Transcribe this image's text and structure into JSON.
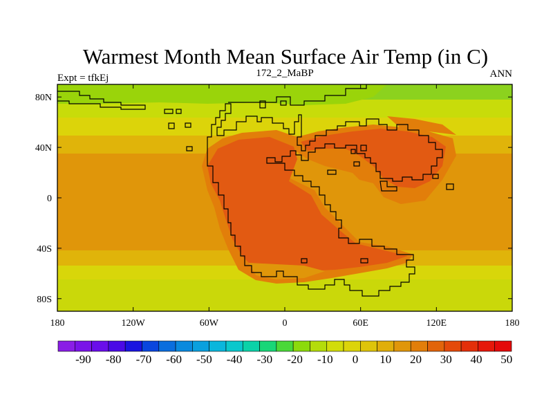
{
  "title": "Warmest Month Mean Surface Air Temp (in C)",
  "left_string": "Expt = tfkEj",
  "center_string": "172_2_MaBP",
  "right_string": "ANN",
  "x_ticks": [
    "180",
    "120W",
    "60W",
    "0",
    "60E",
    "120E",
    "180"
  ],
  "x_tick_values": [
    -180,
    -120,
    -60,
    0,
    60,
    120,
    180
  ],
  "y_ticks": [
    "80N",
    "40N",
    "0",
    "40S",
    "80S"
  ],
  "y_tick_values": [
    80,
    40,
    0,
    -40,
    -80
  ],
  "lon_range": [
    -180,
    180
  ],
  "lat_range": [
    -90,
    90
  ],
  "colorbar": {
    "labels": [
      "-90",
      "-80",
      "-70",
      "-60",
      "-50",
      "-40",
      "-30",
      "-20",
      "-10",
      "0",
      "10",
      "20",
      "30",
      "40",
      "50"
    ],
    "colors": [
      "#8a1ee6",
      "#7a14e8",
      "#6a0eea",
      "#4a0ae6",
      "#1a14e0",
      "#0a46de",
      "#0a6ede",
      "#0a8ade",
      "#0aa0de",
      "#0ab6dc",
      "#0ac8cc",
      "#0ad2a8",
      "#18d678",
      "#4ad838",
      "#8cda0a",
      "#b4dc0a",
      "#d2dc0a",
      "#dcd40a",
      "#dec40a",
      "#e0ae0a",
      "#e0960a",
      "#e27e0a",
      "#e2640a",
      "#e44a0a",
      "#e4300a",
      "#e6180a",
      "#e40a0a"
    ]
  },
  "colors": {
    "polar_green": "#8cd21e",
    "yellow_green": "#c8dc0a",
    "yellow": "#dcd40a",
    "gold": "#e0b40a",
    "orange": "#e0960a",
    "dark_orange": "#e07a0a",
    "red_orange": "#e25a12",
    "coastline": "#000000"
  }
}
